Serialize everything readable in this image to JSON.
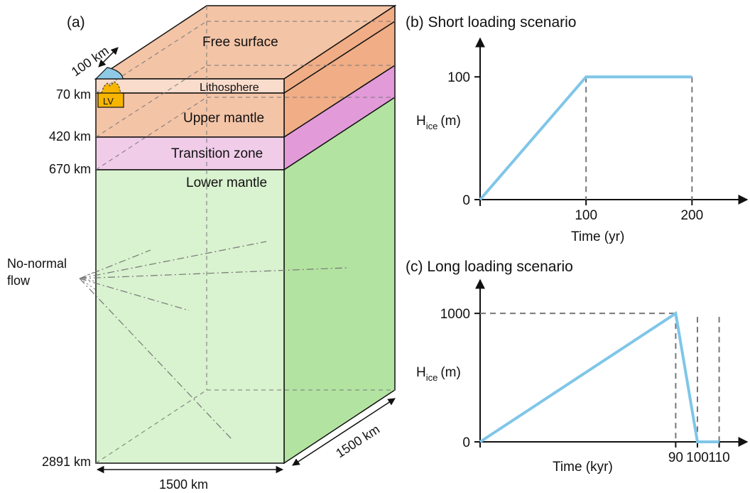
{
  "panel_a": {
    "label": "(a)",
    "top_label": "Free surface",
    "layers": [
      "Lithosphere",
      "Upper mantle",
      "Transition zone",
      "Lower mantle"
    ],
    "depths": [
      "70 km",
      "420 km",
      "670 km",
      "2891 km"
    ],
    "lv_label": "LV",
    "radius_label": "100 km",
    "width_label": "1500 km",
    "depth_dim_label": "1500 km",
    "bc_label_line1": "No-normal",
    "bc_label_line2": "flow",
    "colors": {
      "top": "#f3c4a6",
      "front_upper": "#f4c4a7",
      "front_lith": "#f9dccc",
      "front_tz": "#f0cce9",
      "front_lower": "#d9f2cf",
      "side_upper": "#f0ad86",
      "side_tz": "#e29ad9",
      "side_lower": "#b3e3a1",
      "ice": "#8ecae6",
      "volcano": "#f7b500"
    }
  },
  "chart_data": [
    {
      "type": "line",
      "title": "(b) Short loading scenario",
      "xlabel": "Time (yr)",
      "ylabel_main": "H",
      "ylabel_sub": "ice",
      "ylabel_unit": "(m)",
      "x_ticks": [
        "100",
        "200"
      ],
      "y_ticks": [
        "0",
        "100"
      ],
      "series": [
        {
          "x": [
            0,
            100,
            200
          ],
          "y": [
            0,
            100,
            100
          ]
        }
      ],
      "guides": [
        100,
        200
      ],
      "xlim": [
        0,
        240
      ],
      "ylim": [
        0,
        125
      ],
      "color": "#7fc6e8"
    },
    {
      "type": "line",
      "title": "(c) Long loading scenario",
      "xlabel": "Time (kyr)",
      "ylabel_main": "H",
      "ylabel_sub": "ice",
      "ylabel_unit": "(m)",
      "x_ticks": [
        "90",
        "100",
        "110"
      ],
      "y_ticks": [
        "0",
        "1000"
      ],
      "series": [
        {
          "x": [
            0,
            90,
            100,
            110
          ],
          "y": [
            0,
            1000,
            0,
            0
          ]
        }
      ],
      "guides": [
        90,
        100,
        110
      ],
      "xlim": [
        0,
        117
      ],
      "ylim": [
        0,
        1200
      ],
      "color": "#7fc6e8"
    }
  ]
}
